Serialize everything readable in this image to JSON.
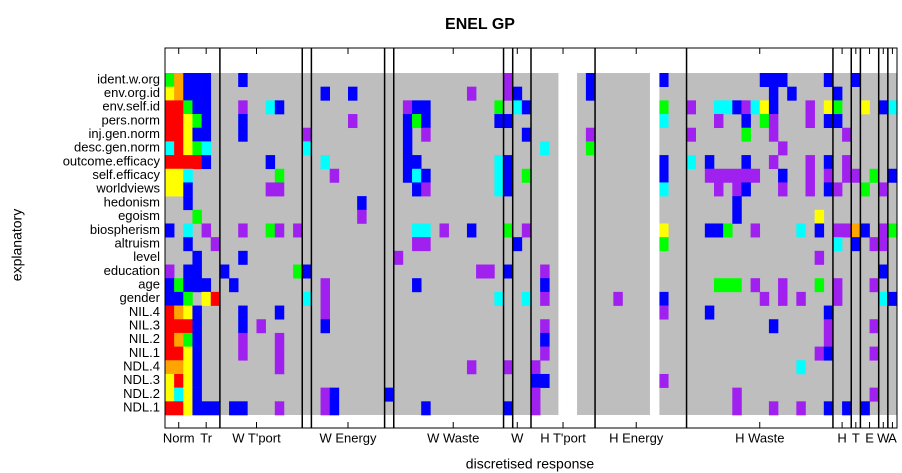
{
  "chart_data": {
    "type": "heatmap",
    "title": "ENEL GP",
    "x_label": "discretised response",
    "y_label": "explanatory",
    "categories": [
      "ident.w.org",
      "env.org.id",
      "env.self.id",
      "pers.norm",
      "inj.gen.norm",
      "desc.gen.norm",
      "outcome.efficacy",
      "self.efficacy",
      "worldviews",
      "hedonism",
      "egoism",
      "biospherism",
      "altruism",
      "level",
      "education",
      "age",
      "gender",
      "NIL.4",
      "NIL.3",
      "NIL.2",
      "NIL.1",
      "NDL.4",
      "NDL.3",
      "NDL.2",
      "NDL.1"
    ],
    "ncols": 80,
    "colors": [
      "#bebebe",
      "#ff0000",
      "#ffa500",
      "#ffff00",
      "#00ff00",
      "#00ffff",
      "#0000ff",
      "#a020f0"
    ],
    "xticks": [
      {
        "value": 1.5,
        "label": "Norm"
      },
      {
        "value": 4.5,
        "label": "Tr"
      },
      {
        "value": 10,
        "label": "W T'port"
      },
      {
        "value": 20,
        "label": "W Energy"
      },
      {
        "value": 31.5,
        "label": "W Waste"
      },
      {
        "value": 38.5,
        "label": "W"
      },
      {
        "value": 43.5,
        "label": "H T'port"
      },
      {
        "value": 51.5,
        "label": "H Energy"
      },
      {
        "value": 65,
        "label": "H Waste"
      },
      {
        "value": 74,
        "label": "H"
      },
      {
        "value": 75.5,
        "label": "T"
      },
      {
        "value": 77,
        "label": "E"
      },
      {
        "value": 78.5,
        "label": "W"
      },
      {
        "value": 79.5,
        "label": "A"
      }
    ],
    "separators": [
      6,
      15,
      16,
      24,
      25,
      37,
      38,
      40,
      47,
      57,
      73,
      75,
      76,
      78,
      79
    ],
    "blank_columns": [
      43,
      44,
      53
    ],
    "cells": [
      [
        0,
        0,
        4
      ],
      [
        0,
        1,
        2
      ],
      [
        0,
        2,
        6
      ],
      [
        0,
        3,
        6
      ],
      [
        0,
        4,
        6
      ],
      [
        1,
        0,
        3
      ],
      [
        1,
        1,
        2
      ],
      [
        1,
        2,
        6
      ],
      [
        1,
        3,
        6
      ],
      [
        1,
        4,
        6
      ],
      [
        2,
        0,
        1
      ],
      [
        2,
        1,
        1
      ],
      [
        2,
        2,
        4
      ],
      [
        2,
        3,
        6
      ],
      [
        2,
        4,
        6
      ],
      [
        3,
        0,
        1
      ],
      [
        3,
        1,
        1
      ],
      [
        3,
        2,
        3
      ],
      [
        3,
        3,
        4
      ],
      [
        3,
        4,
        6
      ],
      [
        4,
        0,
        1
      ],
      [
        4,
        1,
        1
      ],
      [
        4,
        2,
        3
      ],
      [
        4,
        3,
        6
      ],
      [
        4,
        4,
        6
      ],
      [
        5,
        0,
        5
      ],
      [
        5,
        1,
        1
      ],
      [
        5,
        2,
        3
      ],
      [
        5,
        3,
        4
      ],
      [
        5,
        4,
        5
      ],
      [
        6,
        0,
        1
      ],
      [
        6,
        1,
        1
      ],
      [
        6,
        2,
        1
      ],
      [
        6,
        3,
        1
      ],
      [
        6,
        4,
        6
      ],
      [
        7,
        0,
        3
      ],
      [
        7,
        1,
        3
      ],
      [
        7,
        2,
        5
      ],
      [
        8,
        0,
        3
      ],
      [
        8,
        1,
        3
      ],
      [
        8,
        2,
        6
      ],
      [
        9,
        2,
        6
      ],
      [
        10,
        3,
        4
      ],
      [
        11,
        0,
        6
      ],
      [
        11,
        2,
        5
      ],
      [
        11,
        4,
        7
      ],
      [
        12,
        2,
        6
      ],
      [
        13,
        3,
        6
      ],
      [
        14,
        0,
        7
      ],
      [
        14,
        2,
        6
      ],
      [
        14,
        3,
        6
      ],
      [
        15,
        0,
        6
      ],
      [
        15,
        1,
        4
      ],
      [
        15,
        2,
        6
      ],
      [
        15,
        3,
        6
      ],
      [
        15,
        4,
        6
      ],
      [
        16,
        0,
        6
      ],
      [
        16,
        1,
        6
      ],
      [
        16,
        2,
        4
      ],
      [
        16,
        4,
        3
      ],
      [
        16,
        5,
        1
      ],
      [
        17,
        0,
        1
      ],
      [
        17,
        1,
        2
      ],
      [
        17,
        2,
        3
      ],
      [
        17,
        3,
        6
      ],
      [
        18,
        0,
        1
      ],
      [
        18,
        1,
        1
      ],
      [
        18,
        2,
        1
      ],
      [
        18,
        3,
        6
      ],
      [
        19,
        0,
        1
      ],
      [
        19,
        1,
        2
      ],
      [
        19,
        2,
        4
      ],
      [
        19,
        3,
        6
      ],
      [
        20,
        0,
        1
      ],
      [
        20,
        1,
        1
      ],
      [
        20,
        2,
        3
      ],
      [
        20,
        3,
        6
      ],
      [
        21,
        0,
        2
      ],
      [
        21,
        1,
        2
      ],
      [
        21,
        2,
        3
      ],
      [
        21,
        3,
        6
      ],
      [
        22,
        0,
        3
      ],
      [
        22,
        1,
        1
      ],
      [
        22,
        2,
        3
      ],
      [
        22,
        3,
        6
      ],
      [
        23,
        0,
        3
      ],
      [
        23,
        1,
        5
      ],
      [
        23,
        2,
        3
      ],
      [
        23,
        3,
        6
      ],
      [
        24,
        0,
        1
      ],
      [
        24,
        1,
        1
      ],
      [
        24,
        2,
        3
      ],
      [
        24,
        3,
        6
      ],
      [
        24,
        4,
        6
      ],
      [
        24,
        5,
        6
      ],
      [
        0,
        8,
        6
      ],
      [
        0,
        37,
        7
      ],
      [
        0,
        46,
        6
      ],
      [
        0,
        54,
        6
      ],
      [
        0,
        65,
        6
      ],
      [
        0,
        66,
        6
      ],
      [
        0,
        67,
        6
      ],
      [
        0,
        72,
        6
      ],
      [
        0,
        75,
        6
      ],
      [
        1,
        17,
        6
      ],
      [
        1,
        20,
        6
      ],
      [
        1,
        33,
        7
      ],
      [
        1,
        37,
        7
      ],
      [
        1,
        38,
        6
      ],
      [
        1,
        46,
        6
      ],
      [
        1,
        66,
        6
      ],
      [
        1,
        68,
        6
      ],
      [
        1,
        73,
        6
      ],
      [
        2,
        8,
        7
      ],
      [
        2,
        11,
        5
      ],
      [
        2,
        12,
        6
      ],
      [
        2,
        26,
        7
      ],
      [
        2,
        27,
        6
      ],
      [
        2,
        28,
        6
      ],
      [
        2,
        36,
        4
      ],
      [
        2,
        38,
        5
      ],
      [
        2,
        39,
        6
      ],
      [
        2,
        54,
        4
      ],
      [
        2,
        57,
        7
      ],
      [
        2,
        60,
        5
      ],
      [
        2,
        61,
        5
      ],
      [
        2,
        62,
        6
      ],
      [
        2,
        63,
        7
      ],
      [
        2,
        64,
        5
      ],
      [
        2,
        65,
        3
      ],
      [
        2,
        66,
        6
      ],
      [
        2,
        70,
        7
      ],
      [
        2,
        72,
        3
      ],
      [
        2,
        73,
        4
      ],
      [
        2,
        76,
        3
      ],
      [
        2,
        78,
        6
      ],
      [
        2,
        79,
        5
      ],
      [
        3,
        8,
        6
      ],
      [
        3,
        20,
        7
      ],
      [
        3,
        26,
        6
      ],
      [
        3,
        27,
        4
      ],
      [
        3,
        28,
        6
      ],
      [
        3,
        36,
        6
      ],
      [
        3,
        37,
        6
      ],
      [
        3,
        54,
        5
      ],
      [
        3,
        60,
        7
      ],
      [
        3,
        63,
        6
      ],
      [
        3,
        65,
        4
      ],
      [
        3,
        66,
        7
      ],
      [
        3,
        70,
        7
      ],
      [
        3,
        72,
        6
      ],
      [
        3,
        73,
        6
      ],
      [
        4,
        8,
        6
      ],
      [
        4,
        15,
        7
      ],
      [
        4,
        26,
        6
      ],
      [
        4,
        28,
        7
      ],
      [
        4,
        39,
        6
      ],
      [
        4,
        46,
        7
      ],
      [
        4,
        57,
        7
      ],
      [
        4,
        63,
        4
      ],
      [
        4,
        66,
        7
      ],
      [
        4,
        74,
        7
      ],
      [
        5,
        15,
        5
      ],
      [
        5,
        26,
        6
      ],
      [
        5,
        41,
        5
      ],
      [
        5,
        46,
        4
      ],
      [
        5,
        67,
        7
      ],
      [
        6,
        11,
        6
      ],
      [
        6,
        17,
        5
      ],
      [
        6,
        26,
        6
      ],
      [
        6,
        27,
        6
      ],
      [
        6,
        36,
        5
      ],
      [
        6,
        37,
        6
      ],
      [
        6,
        54,
        6
      ],
      [
        6,
        57,
        5
      ],
      [
        6,
        59,
        6
      ],
      [
        6,
        63,
        6
      ],
      [
        6,
        66,
        7
      ],
      [
        6,
        70,
        7
      ],
      [
        6,
        72,
        6
      ],
      [
        6,
        74,
        7
      ],
      [
        7,
        12,
        4
      ],
      [
        7,
        18,
        7
      ],
      [
        7,
        26,
        6
      ],
      [
        7,
        27,
        5
      ],
      [
        7,
        28,
        6
      ],
      [
        7,
        36,
        5
      ],
      [
        7,
        37,
        6
      ],
      [
        7,
        39,
        4
      ],
      [
        7,
        54,
        6
      ],
      [
        7,
        59,
        7
      ],
      [
        7,
        60,
        7
      ],
      [
        7,
        61,
        7
      ],
      [
        7,
        62,
        7
      ],
      [
        7,
        63,
        7
      ],
      [
        7,
        64,
        7
      ],
      [
        7,
        67,
        6
      ],
      [
        7,
        70,
        7
      ],
      [
        7,
        72,
        7
      ],
      [
        7,
        74,
        7
      ],
      [
        7,
        75,
        7
      ],
      [
        7,
        77,
        4
      ],
      [
        7,
        79,
        6
      ],
      [
        8,
        11,
        7
      ],
      [
        8,
        12,
        7
      ],
      [
        8,
        27,
        6
      ],
      [
        8,
        28,
        7
      ],
      [
        8,
        36,
        5
      ],
      [
        8,
        37,
        6
      ],
      [
        8,
        54,
        5
      ],
      [
        8,
        60,
        7
      ],
      [
        8,
        62,
        7
      ],
      [
        8,
        63,
        6
      ],
      [
        8,
        67,
        7
      ],
      [
        8,
        70,
        7
      ],
      [
        8,
        72,
        6
      ],
      [
        8,
        73,
        7
      ],
      [
        8,
        76,
        4
      ],
      [
        8,
        78,
        7
      ],
      [
        9,
        21,
        6
      ],
      [
        9,
        62,
        6
      ],
      [
        10,
        21,
        7
      ],
      [
        10,
        62,
        6
      ],
      [
        10,
        71,
        3
      ],
      [
        11,
        8,
        7
      ],
      [
        11,
        11,
        4
      ],
      [
        11,
        12,
        7
      ],
      [
        11,
        14,
        7
      ],
      [
        11,
        27,
        5
      ],
      [
        11,
        28,
        5
      ],
      [
        11,
        30,
        7
      ],
      [
        11,
        33,
        6
      ],
      [
        11,
        37,
        4
      ],
      [
        11,
        39,
        7
      ],
      [
        11,
        54,
        3
      ],
      [
        11,
        59,
        6
      ],
      [
        11,
        60,
        6
      ],
      [
        11,
        61,
        4
      ],
      [
        11,
        64,
        7
      ],
      [
        11,
        69,
        5
      ],
      [
        11,
        71,
        6
      ],
      [
        11,
        73,
        7
      ],
      [
        11,
        74,
        7
      ],
      [
        11,
        75,
        2
      ],
      [
        11,
        76,
        6
      ],
      [
        11,
        78,
        7
      ],
      [
        11,
        79,
        4
      ],
      [
        12,
        5,
        7
      ],
      [
        12,
        27,
        7
      ],
      [
        12,
        28,
        7
      ],
      [
        12,
        38,
        6
      ],
      [
        12,
        54,
        4
      ],
      [
        12,
        73,
        5
      ],
      [
        12,
        75,
        6
      ],
      [
        12,
        77,
        7
      ],
      [
        12,
        78,
        7
      ],
      [
        13,
        8,
        6
      ],
      [
        13,
        25,
        7
      ],
      [
        13,
        71,
        7
      ],
      [
        14,
        6,
        6
      ],
      [
        14,
        14,
        4
      ],
      [
        14,
        15,
        6
      ],
      [
        14,
        34,
        7
      ],
      [
        14,
        35,
        7
      ],
      [
        14,
        37,
        6
      ],
      [
        14,
        41,
        7
      ],
      [
        14,
        78,
        6
      ],
      [
        15,
        7,
        6
      ],
      [
        15,
        17,
        7
      ],
      [
        15,
        27,
        6
      ],
      [
        15,
        41,
        6
      ],
      [
        15,
        60,
        4
      ],
      [
        15,
        61,
        4
      ],
      [
        15,
        62,
        4
      ],
      [
        15,
        64,
        7
      ],
      [
        15,
        67,
        7
      ],
      [
        15,
        71,
        4
      ],
      [
        15,
        73,
        7
      ],
      [
        15,
        77,
        7
      ],
      [
        16,
        15,
        5
      ],
      [
        16,
        17,
        7
      ],
      [
        16,
        36,
        5
      ],
      [
        16,
        39,
        5
      ],
      [
        16,
        41,
        7
      ],
      [
        16,
        49,
        7
      ],
      [
        16,
        54,
        6
      ],
      [
        16,
        65,
        7
      ],
      [
        16,
        67,
        7
      ],
      [
        16,
        69,
        7
      ],
      [
        16,
        73,
        7
      ],
      [
        16,
        78,
        5
      ],
      [
        16,
        79,
        6
      ],
      [
        17,
        8,
        6
      ],
      [
        17,
        12,
        6
      ],
      [
        17,
        17,
        7
      ],
      [
        17,
        54,
        7
      ],
      [
        17,
        59,
        6
      ],
      [
        17,
        72,
        6
      ],
      [
        18,
        8,
        6
      ],
      [
        18,
        10,
        7
      ],
      [
        18,
        17,
        6
      ],
      [
        18,
        41,
        7
      ],
      [
        18,
        66,
        6
      ],
      [
        18,
        72,
        7
      ],
      [
        18,
        77,
        7
      ],
      [
        19,
        8,
        7
      ],
      [
        19,
        12,
        7
      ],
      [
        19,
        41,
        6
      ],
      [
        19,
        72,
        7
      ],
      [
        20,
        8,
        7
      ],
      [
        20,
        12,
        7
      ],
      [
        20,
        41,
        7
      ],
      [
        20,
        71,
        7
      ],
      [
        20,
        72,
        6
      ],
      [
        20,
        77,
        7
      ],
      [
        21,
        12,
        7
      ],
      [
        21,
        33,
        7
      ],
      [
        21,
        37,
        7
      ],
      [
        21,
        40,
        7
      ],
      [
        21,
        69,
        5
      ],
      [
        22,
        40,
        6
      ],
      [
        22,
        41,
        6
      ],
      [
        22,
        54,
        7
      ],
      [
        23,
        17,
        7
      ],
      [
        23,
        18,
        6
      ],
      [
        23,
        24,
        6
      ],
      [
        23,
        40,
        7
      ],
      [
        23,
        62,
        7
      ],
      [
        23,
        77,
        7
      ],
      [
        24,
        7,
        6
      ],
      [
        24,
        8,
        6
      ],
      [
        24,
        12,
        7
      ],
      [
        24,
        17,
        7
      ],
      [
        24,
        18,
        6
      ],
      [
        24,
        28,
        6
      ],
      [
        24,
        37,
        6
      ],
      [
        24,
        40,
        7
      ],
      [
        24,
        62,
        7
      ],
      [
        24,
        66,
        7
      ],
      [
        24,
        69,
        7
      ],
      [
        24,
        72,
        6
      ],
      [
        24,
        74,
        6
      ],
      [
        24,
        76,
        6
      ]
    ]
  }
}
